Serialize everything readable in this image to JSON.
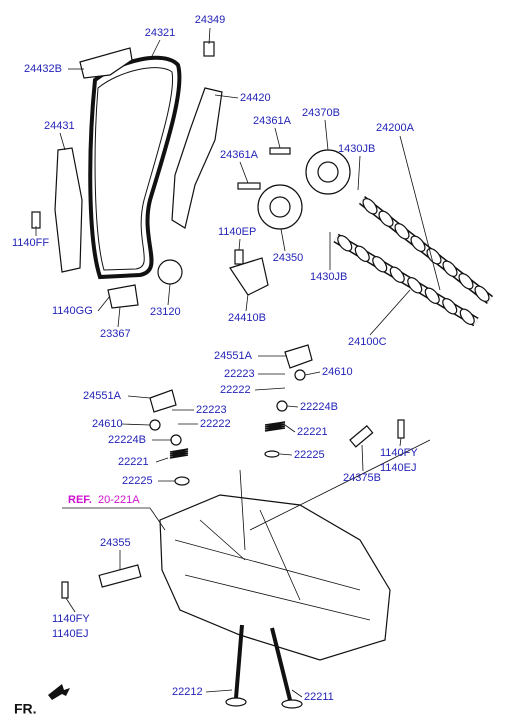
{
  "labels": [
    "24349",
    "24321",
    "24432B",
    "24420",
    "24361A",
    "24370B",
    "24200A",
    "24431",
    "24361A",
    "1430JB",
    "1140FF",
    "1140EP",
    "24350",
    "1430JB",
    "1140GG",
    "23120",
    "24410B",
    "23367",
    "24100C",
    "24551A",
    "24610",
    "22223",
    "22222",
    "24551A",
    "22224B",
    "22223",
    "24610",
    "22222",
    "22221",
    "22224B",
    "1140FY",
    "22225",
    "1140EJ",
    "22221",
    "24375B",
    "22225",
    "24355",
    "1140FY",
    "1140EJ",
    "22212",
    "22211"
  ],
  "ref": {
    "prefix": "REF.",
    "code": "20-221A"
  },
  "corner": "FR."
}
